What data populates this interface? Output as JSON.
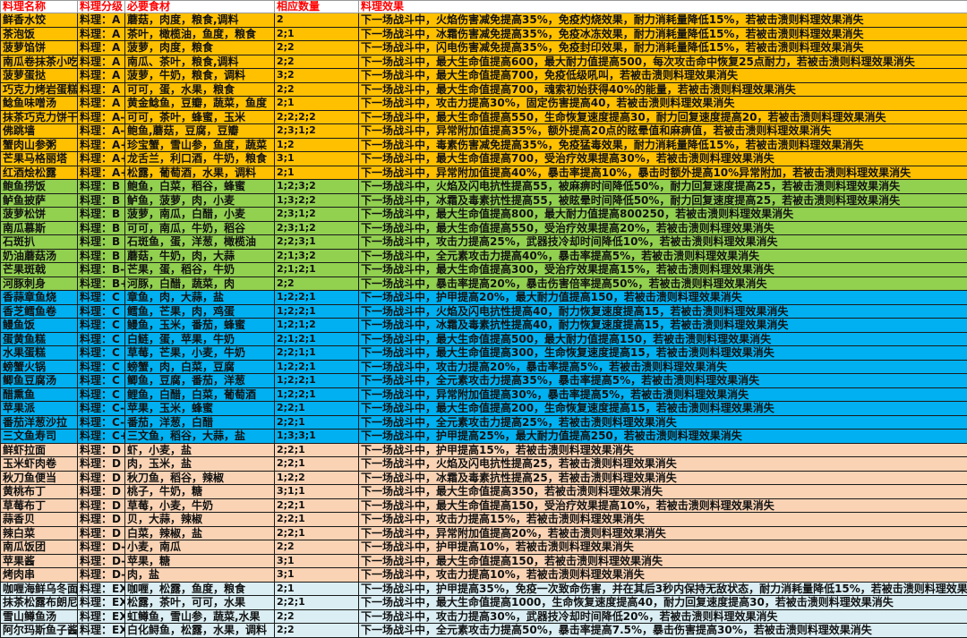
{
  "header": {
    "name": "料理名称",
    "grade": "料理分级",
    "ingredients": "必要食材",
    "quantity": "相应数量",
    "effect": "料理效果"
  },
  "colors": {
    "A": "#FFC000",
    "B": "#92D050",
    "C": "#00B0F0",
    "D": "#FAD3B4",
    "EX": "#DAEEF3",
    "header_text": "#FF0000"
  },
  "rows": [
    {
      "tier": "A",
      "name": "鲜香水饺",
      "grade": "料理：A",
      "ingredients": "蘑菇，肉度，粮食,调料",
      "quantity": "2",
      "effect": "下一场战斗中，火焰伤害减免提高35%，免疫灼烧效果，耐力消耗量降低15%，若被击溃则料理效果消失"
    },
    {
      "tier": "A",
      "name": "茶泡饭",
      "grade": "料理：A",
      "ingredients": "茶叶，橄榄油，鱼度，粮食",
      "quantity": "2;1",
      "effect": "下一场战斗中，冰霜伤害减免提高35%，免疫冰冻效果，耐力消耗量降低15%，若被击溃则料理效果消失"
    },
    {
      "tier": "A",
      "name": "菠萝馅饼",
      "grade": "料理：A",
      "ingredients": "菠萝，肉度，粮食",
      "quantity": "2;2",
      "effect": "下一场战斗中，闪电伤害减免提高35%，免疫封印效果，耐力消耗量降低15%，若被击溃则料理效果消失"
    },
    {
      "tier": "A",
      "name": "南瓜卷抹茶小吃",
      "grade": "料理：A",
      "ingredients": "南瓜、茶叶，粮食,调料",
      "quantity": "2;2",
      "effect": "下一场战斗中，最大生命值提高600，最大耐力值提高500，每次攻击命中恢复25点耐力，若被击溃则料理效果消失"
    },
    {
      "tier": "A",
      "name": "菠萝蛋挞",
      "grade": "料理：A",
      "ingredients": "菠萝，牛奶，粮食，调料",
      "quantity": "3;2",
      "effect": "下一场战斗中，最大生命值提高700，免疫低级吼叫，若被击溃则料理效果消失"
    },
    {
      "tier": "A",
      "name": "巧克力烤岩蛋糕",
      "grade": "料理：A",
      "ingredients": "可可，蛋，水果，粮食",
      "quantity": "2;2",
      "effect": "下一场战斗中，最大生命值提高700，魂索初始获得40%的能量，若被击溃则料理效果消失"
    },
    {
      "tier": "A",
      "name": "鲶鱼味噌汤",
      "grade": "料理：A",
      "ingredients": "黄金鲶鱼，豆瓣，蔬菜，鱼度",
      "quantity": "2;1",
      "effect": "下一场战斗中，攻击力提高30%，固定伤害提高40，若被击溃则料理效果消失"
    },
    {
      "tier": "A",
      "name": "抹茶巧克力饼干",
      "grade": "料理：A-",
      "ingredients": "可可，茶叶，蜂蜜，玉米",
      "quantity": "2;2;2;2",
      "effect": "下一场战斗中，最大生命值提高550，生命恢复速度提高30，耐力回复速度提高20，若被击溃则料理效果消失"
    },
    {
      "tier": "A",
      "name": "佛跳墙",
      "grade": "料理：A-",
      "ingredients": "鲍鱼,蘑菇，豆腐，豆瓣",
      "quantity": "2;3;1;2",
      "effect": "下一场战斗中，异常附加值提高35%，额外提高20点的眩晕值和麻痹值，若被击溃则料理效果消失"
    },
    {
      "tier": "A",
      "name": "蟹肉山参粥",
      "grade": "料理：A+",
      "ingredients": "珍宝蟹，雪山参，鱼度，蔬菜",
      "quantity": "1;2",
      "effect": "下一场战斗中，毒素伤害减免提高35%，免疫猛毒效果，耐力消耗量降低15%，若被击溃则料理效果消失"
    },
    {
      "tier": "A",
      "name": "芒果马格丽塔",
      "grade": "料理：A+",
      "ingredients": "龙舌兰，利口酒，牛奶，粮食",
      "quantity": "3;1",
      "effect": "下一场战斗中，最大生命值提高700，受治疗效果提高30%，若被击溃则料理效果消失"
    },
    {
      "tier": "A",
      "name": "红酒烩松露",
      "grade": "料理：A+",
      "ingredients": "松露，葡萄酒，水果，调料",
      "quantity": "2;1",
      "effect": "下一场战斗中，异常附加值提高40%，暴击率提高10%，暴击时额外提高10%异常附加，若被击溃则料理效果消失"
    },
    {
      "tier": "B",
      "name": "鲍鱼捞饭",
      "grade": "料理：B",
      "ingredients": "鲍鱼，白菜，稻谷，蜂蜜",
      "quantity": "1;2;3;2",
      "effect": "下一场战斗中，火焰及闪电抗性提高55，被麻痹时间降低50%，耐力回复速度提高25，若被击溃则料理效果消失"
    },
    {
      "tier": "B",
      "name": "鲈鱼披萨",
      "grade": "料理：B",
      "ingredients": "鲈鱼，菠萝，肉，小麦",
      "quantity": "1;3;2;2",
      "effect": "下一场战斗中，冰霜及毒素抗性提高55，被眩晕时间降低50%，耐力回复速度提高25，若被击溃则料理效果消失"
    },
    {
      "tier": "B",
      "name": "菠萝松饼",
      "grade": "料理：B",
      "ingredients": "菠萝，南瓜，白醋，小麦",
      "quantity": "2;3;1;2",
      "effect": "下一场战斗中，最大生命值提高800，最大耐力值提高800250，若被击溃则料理效果消失"
    },
    {
      "tier": "B",
      "name": "南瓜慕斯",
      "grade": "料理：B",
      "ingredients": "可可，南瓜，牛奶，稻谷",
      "quantity": "2;3;1;2",
      "effect": "下一场战斗中，最大生命值提高550，受治疗效果提高20%，若被击溃则料理效果消失"
    },
    {
      "tier": "B",
      "name": "石斑扒",
      "grade": "料理：B",
      "ingredients": "石斑鱼，蛋，洋葱，橄榄油",
      "quantity": "2;2;3;1",
      "effect": "下一场战斗中，攻击力提高25%，武器技冷却时间降低10%，若被击溃则料理效果消失"
    },
    {
      "tier": "B",
      "name": "奶油蘑菇汤",
      "grade": "料理：B",
      "ingredients": "蘑菇，牛奶，肉，大蒜",
      "quantity": "2;1;3;2",
      "effect": "下一场战斗中，全元素攻击力提高40%，暴击率提高5%，若被击溃则料理效果消失"
    },
    {
      "tier": "B",
      "name": "芒果斑戟",
      "grade": "料理：B-",
      "ingredients": "芒果，蛋，稻谷，牛奶",
      "quantity": "2;1;2;1",
      "effect": "下一场战斗中，最大生命值提高300，受治疗效果提高15%，若被击溃则料理效果消失"
    },
    {
      "tier": "B",
      "name": "河豚刺身",
      "grade": "料理：B+",
      "ingredients": "河豚，白醋，蔬菜，肉",
      "quantity": "2;2",
      "effect": "下一场战斗中，暴击率提高20%，暴击伤害倍率提高50%，若被击溃则料理效果消失"
    },
    {
      "tier": "C",
      "name": "香蒜章鱼烧",
      "grade": "料理：C",
      "ingredients": "章鱼，肉，大蒜，盐",
      "quantity": "1;2;2;1",
      "effect": "下一场战斗中，护甲提高20%，最大耐力值提高150，若被击溃则料理效果消失"
    },
    {
      "tier": "C",
      "name": "香芝鳕鱼卷",
      "grade": "料理：C",
      "ingredients": "鳕鱼，芒果，肉，鸡蛋",
      "quantity": "1;2;2;1",
      "effect": "下一场战斗中，火焰及闪电抗性提高40，耐力恢复速度提高15，若被击溃则料理效果消失"
    },
    {
      "tier": "C",
      "name": "鳗鱼饭",
      "grade": "料理：C",
      "ingredients": "鳗鱼，玉米，番茄，蜂蜜",
      "quantity": "1;2;1;2",
      "effect": "下一场战斗中，冰霜及毒素抗性提高40，耐力恢复速度提高15，若被击溃则料理效果消失"
    },
    {
      "tier": "C",
      "name": "蛋黄鱼糕",
      "grade": "料理：C",
      "ingredients": "白鲢，蛋，苹果，牛奶",
      "quantity": "2;1;2;1",
      "effect": "下一场战斗中，最大生命值提高500，最大耐力值提高150，若被击溃则料理效果消失"
    },
    {
      "tier": "C",
      "name": "水果蛋糕",
      "grade": "料理：C",
      "ingredients": "草莓，芒果，小麦，牛奶",
      "quantity": "2;2;1;1",
      "effect": "下一场战斗中，最大生命值提高300，生命恢复速度提高15，若被击溃则料理效果消失"
    },
    {
      "tier": "C",
      "name": "螃蟹火锅",
      "grade": "料理：C",
      "ingredients": "螃蟹，肉，白菜，豆腐",
      "quantity": "1;2;2;1",
      "effect": "下一场战斗中，攻击力提高20%，暴击率提高5%，若被击溃则料理效果消失"
    },
    {
      "tier": "C",
      "name": "鲫鱼豆腐汤",
      "grade": "料理：C",
      "ingredients": "鲫鱼，豆腐，番茄，洋葱",
      "quantity": "1;2;2;1",
      "effect": "下一场战斗中，全元素攻击力提高35%，暴击率提高5%，若被击溃则料理效果消失"
    },
    {
      "tier": "C",
      "name": "醋熏鱼",
      "grade": "料理：C",
      "ingredients": "鲤鱼，白醋，白菜，葡萄酒",
      "quantity": "1;2;2;1",
      "effect": "下一场战斗中，异常附加值提高30%，暴击率提高5%，若被击溃则料理效果消失"
    },
    {
      "tier": "C",
      "name": "苹果派",
      "grade": "料理：C-",
      "ingredients": "苹果，玉米，蜂蜜",
      "quantity": "2;2;1",
      "effect": "下一场战斗中，最大生命值提高200，生命恢复速度提高15，若被击溃则料理效果消失"
    },
    {
      "tier": "C",
      "name": "番茄洋葱沙拉",
      "grade": "料理：C-",
      "ingredients": "番茄，洋葱，白醋",
      "quantity": "2;2;1",
      "effect": "下一场战斗中，全元素攻击力提高25%，若被击溃则料理效果消失"
    },
    {
      "tier": "C",
      "name": "三文鱼寿司",
      "grade": "料理：C+",
      "ingredients": "三文鱼，稻谷，大蒜，盐",
      "quantity": "1;3;3;1",
      "effect": "下一场战斗中，护甲提高25%，最大耐力值提高250，若被击溃则料理效果消失"
    },
    {
      "tier": "D",
      "name": "鲜虾拉面",
      "grade": "料理：D",
      "ingredients": "虾，小麦，盐",
      "quantity": "2;2;1",
      "effect": "下一场战斗中，护甲提高15%，若被击溃则料理效果消失"
    },
    {
      "tier": "D",
      "name": "玉米虾肉卷",
      "grade": "料理：D",
      "ingredients": "肉，玉米，盐",
      "quantity": "2;2;1",
      "effect": "下一场战斗中，火焰及闪电抗性提高25，若被击溃则料理效果消失"
    },
    {
      "tier": "D",
      "name": "秋刀鱼便当",
      "grade": "料理：D",
      "ingredients": "秋刀鱼，稻谷，辣椒",
      "quantity": "1;2;2",
      "effect": "下一场战斗中，冰霜及毒素抗性提高25，若被击溃则料理效果消失"
    },
    {
      "tier": "D",
      "name": "黄桃布丁",
      "grade": "料理：D",
      "ingredients": "桃子，牛奶，糖",
      "quantity": "3;1;1",
      "effect": "下一场战斗中，最大生命值提高350，若被击溃则料理效果消失"
    },
    {
      "tier": "D",
      "name": "草莓布丁",
      "grade": "料理：D",
      "ingredients": "草莓，小麦，牛奶",
      "quantity": "2;2;1",
      "effect": "下一场战斗中，最大生命值提高150，受治疗效果提高10%，若被击溃则料理效果消失"
    },
    {
      "tier": "D",
      "name": "蒜香贝",
      "grade": "料理：D",
      "ingredients": "贝，大蒜，辣椒",
      "quantity": "2;2;1",
      "effect": "下一场战斗中，攻击力提高15%，若被击溃则料理效果消失"
    },
    {
      "tier": "D",
      "name": "辣白菜",
      "grade": "料理：D",
      "ingredients": "白菜，辣椒，盐",
      "quantity": "2;2;1",
      "effect": "下一场战斗中，异常附加值提高20%，若被击溃则料理效果消失"
    },
    {
      "tier": "D",
      "name": "南瓜饭团",
      "grade": "料理：D-",
      "ingredients": "小麦，南瓜",
      "quantity": "2;2",
      "effect": "下一场战斗中，护甲提高10%，若被击溃则料理效果消失"
    },
    {
      "tier": "D",
      "name": "苹果酱",
      "grade": "料理：D-",
      "ingredients": "苹果，糖",
      "quantity": "3;1",
      "effect": "下一场战斗中，最大生命值提高150，若被击溃则料理效果消失"
    },
    {
      "tier": "D",
      "name": "烤肉串",
      "grade": "料理：D-",
      "ingredients": "肉，盐",
      "quantity": "3;1",
      "effect": "下一场战斗中，攻击力提高10%，若被击溃则料理效果消失"
    },
    {
      "tier": "EX",
      "name": "咖喱海鲜乌冬面",
      "grade": "料理：EX",
      "ingredients": "咖喱，松露，鱼度，粮食",
      "quantity": "2;1",
      "effect": "下一场战斗中，护甲提高35%，免疫一次致命伤害，并在其后3秒内保持无敌状态，耐力消耗量降低15%，若被击溃则料理效果消失"
    },
    {
      "tier": "EX",
      "name": "抹茶松露布朗尼",
      "grade": "料理：EX",
      "ingredients": "松露，茶叶，可可，水果",
      "quantity": "2;2;1",
      "effect": "下一场战斗中，最大生命值提高1000，生命恢复速度提高40，耐力回复速度提高30，若被击溃则料理效果消失"
    },
    {
      "tier": "EX",
      "name": "雪山鳟鱼汤",
      "grade": "料理：EX",
      "ingredients": "虹鳟鱼，雪山参，蔬菜,水果",
      "quantity": "2;2",
      "effect": "下一场战斗中，攻击力提高30%，武器技冷却时间降低20%，若被击溃则料理效果消失"
    },
    {
      "tier": "EX",
      "name": "阿尔玛斯鱼子酱",
      "grade": "料理：EX",
      "ingredients": "白化鲟鱼，松露，水果，调料",
      "quantity": "2;2",
      "effect": "下一场战斗中，全元素攻击力提高50%，暴击率提高7.5%，暴击伤害提高30%，若被击溃则料理效果消失"
    }
  ]
}
